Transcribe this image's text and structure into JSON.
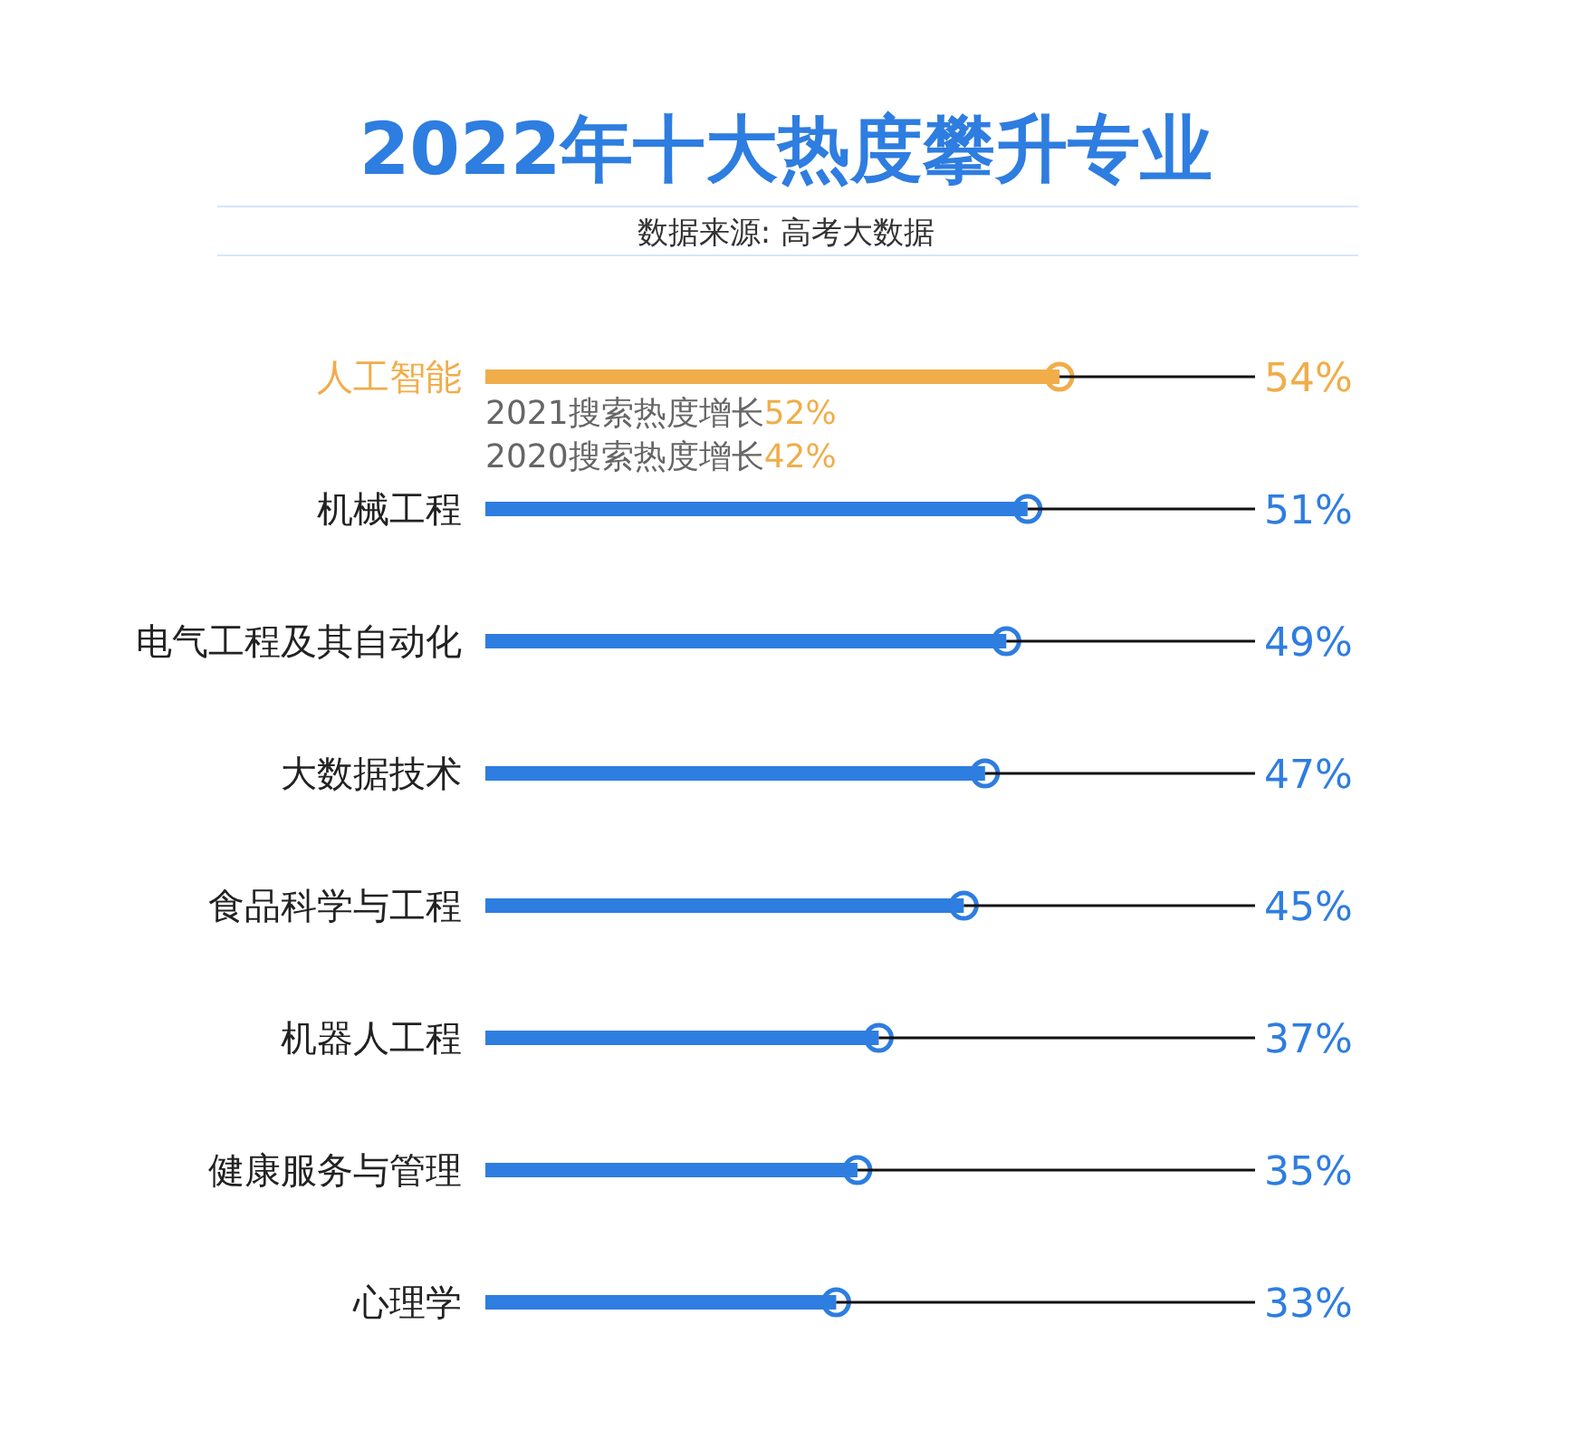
{
  "chart_data": {
    "type": "bar",
    "orientation": "horizontal",
    "relative": false,
    "title": "2022年十大热度攀升专业",
    "subtitle": "数据来源: 高考大数据",
    "categories": [
      "人工智能",
      "机械工程",
      "电气工程及其自动化",
      "大数据技术",
      "食品科学与工程",
      "机器人工程",
      "健康服务与管理",
      "心理学"
    ],
    "values": [
      54,
      51,
      49,
      47,
      45,
      37,
      35,
      33
    ],
    "color": "#2e7de0",
    "colors": [
      "#f0ad4a",
      "#2e7de0",
      "#2e7de0",
      "#2e7de0",
      "#2e7de0",
      "#2e7de0",
      "#2e7de0",
      "#2e7de0"
    ],
    "value_labels": [
      "54%",
      "51%",
      "49%",
      "47%",
      "45%",
      "37%",
      "35%",
      "33%"
    ],
    "marker": "circle",
    "annotations": [
      {
        "text": "2021搜索热度增长52%",
        "y": "人工智能"
      },
      {
        "text": "2020搜索热度增长42%",
        "y": "人工智能"
      }
    ]
  }
}
